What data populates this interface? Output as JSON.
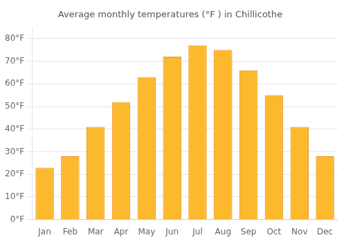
{
  "chart_data": {
    "type": "bar",
    "title": "Average monthly temperatures (°F ) in Chillicothe",
    "categories": [
      "Jan",
      "Feb",
      "Mar",
      "Apr",
      "May",
      "Jun",
      "Jul",
      "Aug",
      "Sep",
      "Oct",
      "Nov",
      "Dec"
    ],
    "values": [
      23,
      28,
      41,
      52,
      63,
      72,
      77,
      75,
      66,
      55,
      41,
      28
    ],
    "color": "#FDB92E",
    "ylim": [
      0,
      85
    ],
    "yticks": [
      {
        "value": 0,
        "label": "0°F"
      },
      {
        "value": 10,
        "label": "10°F"
      },
      {
        "value": 20,
        "label": "20°F"
      },
      {
        "value": 30,
        "label": "30°F"
      },
      {
        "value": 40,
        "label": "40°F"
      },
      {
        "value": 50,
        "label": "50°F"
      },
      {
        "value": 60,
        "label": "60°F"
      },
      {
        "value": 70,
        "label": "70°F"
      },
      {
        "value": 80,
        "label": "80°F"
      }
    ],
    "grid": true
  }
}
